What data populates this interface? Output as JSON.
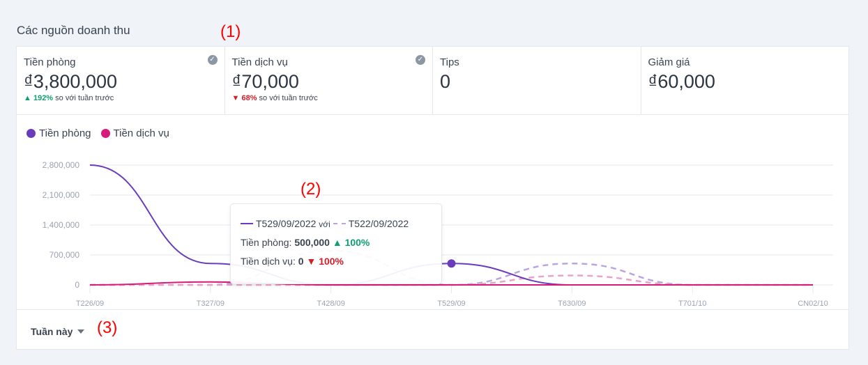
{
  "section_title": "Các nguồn doanh thu",
  "stats": [
    {
      "label": "Tiền phòng",
      "value": "₫3,800,000",
      "change": "192%",
      "direction": "up",
      "compare_text": "so với tuần trước",
      "checked": true
    },
    {
      "label": "Tiền dịch vụ",
      "value": "₫70,000",
      "change": "68%",
      "direction": "down",
      "compare_text": "so với tuần trước",
      "checked": true
    },
    {
      "label": "Tips",
      "value": "0"
    },
    {
      "label": "Giảm giá",
      "value": "₫60,000"
    }
  ],
  "tooltip": {
    "current_period": "T529/09/2022",
    "versus": "với",
    "previous_period": "T522/09/2022",
    "rows": [
      {
        "label": "Tiền phòng:",
        "value": "500,000",
        "change": "100%",
        "direction": "up"
      },
      {
        "label": "Tiền dịch vụ:",
        "value": "0",
        "change": "100%",
        "direction": "down"
      }
    ]
  },
  "period_selector": "Tuần này",
  "annotations": [
    "(1)",
    "(2)",
    "(3)"
  ],
  "chart_data": {
    "type": "line",
    "categories": [
      "T226/09",
      "T327/09",
      "T428/09",
      "T529/09",
      "T630/09",
      "T701/10",
      "CN02/10"
    ],
    "y_ticks": [
      0,
      700000,
      1400000,
      2100000,
      2800000
    ],
    "y_tick_labels": [
      "0",
      "700,000",
      "1,400,000",
      "2,100,000",
      "2,800,000"
    ],
    "ylim": [
      0,
      2800000
    ],
    "grid": true,
    "legend_position": "top-left",
    "series": [
      {
        "name": "Tiền phòng",
        "color": "#6a3cbc",
        "values": [
          2800000,
          500000,
          0,
          500000,
          0,
          0,
          0
        ]
      },
      {
        "name": "Tiền dịch vụ",
        "color": "#d81b7a",
        "values": [
          0,
          70000,
          0,
          0,
          0,
          0,
          0
        ]
      }
    ],
    "previous_series": [
      {
        "color": "#b9a6e0",
        "values": [
          0,
          0,
          800000,
          0,
          500000,
          0,
          0
        ]
      },
      {
        "color": "#eaa3c8",
        "values": [
          0,
          0,
          0,
          0,
          220000,
          0,
          0
        ]
      }
    ],
    "highlighted_category": "T529/09"
  }
}
